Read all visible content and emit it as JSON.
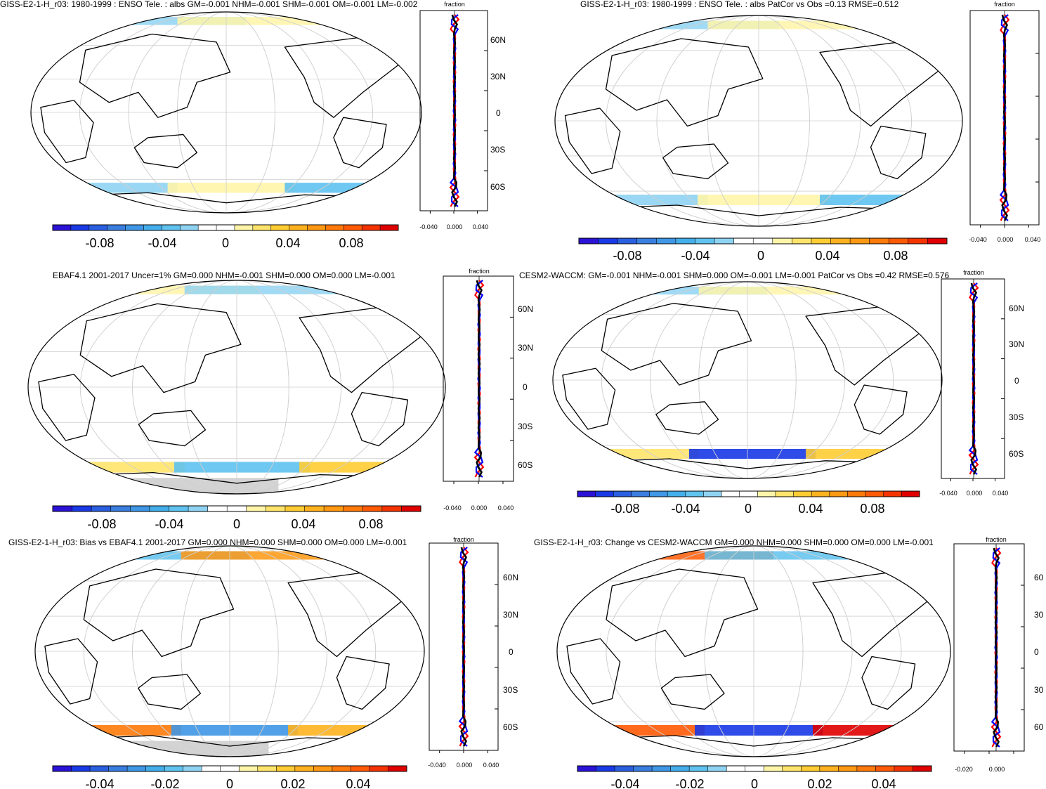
{
  "palette": [
    "#2a12d6",
    "#1a39e6",
    "#2a5fe0",
    "#3a7ee0",
    "#3f97e6",
    "#43aeea",
    "#5fc2ef",
    "#8fd3f3",
    "#ffffff",
    "#ffffff",
    "#fff5a8",
    "#ffe46b",
    "#ffcc33",
    "#ffb21f",
    "#ff9812",
    "#ff7a0a",
    "#ff5a05",
    "#f53300",
    "#e00000"
  ],
  "panels": [
    {
      "title": "GISS-E2-1-H_r03: 1980-1999 : ENSO Tele. : albs GM=-0.001 NHM=-0.001 SHM=-0.001 OM=-0.001 LM=-0.002",
      "colorbar_labels": [
        "-0.08",
        "-0.04",
        "0",
        "0.04",
        "0.08"
      ],
      "profile": {
        "header": "fraction",
        "xticks": [
          "-0.040",
          "0.000",
          "0.040"
        ],
        "lat_labels": [
          "60N",
          "30N",
          "0",
          "30S",
          "60S"
        ]
      },
      "map": {
        "gray_land": false,
        "bands": [
          {
            "pole": "north",
            "color": "#8fd3f3"
          },
          {
            "pole": "north",
            "color": "#fff5a8"
          },
          {
            "pole": "south",
            "color": "#8fd3f3"
          },
          {
            "pole": "south",
            "color": "#fff5a8"
          },
          {
            "pole": "south",
            "color": "#5fc2ef"
          }
        ]
      }
    },
    {
      "title": "GISS-E2-1-H_r03: 1980-1999 : ENSO Tele. : albs PatCor vs Obs =0.13 RMSE=0.512",
      "colorbar_labels": [
        "-0.08",
        "-0.04",
        "0",
        "0.04",
        "0.08"
      ],
      "profile": {
        "header": "fraction",
        "xticks": [
          "-0.040",
          "0.000",
          "0.040"
        ],
        "lat_labels": []
      },
      "map": {
        "gray_land": false,
        "bands": [
          {
            "pole": "north",
            "color": "#8fd3f3"
          },
          {
            "pole": "north",
            "color": "#fff5a8"
          },
          {
            "pole": "south",
            "color": "#8fd3f3"
          },
          {
            "pole": "south",
            "color": "#fff5a8"
          },
          {
            "pole": "south",
            "color": "#5fc2ef"
          }
        ]
      }
    },
    {
      "title": "EBAF4.1 2001-2017 Uncer=1% GM=0.000 NHM=-0.001 SHM=0.000 OM=0.000 LM=-0.001",
      "colorbar_labels": [
        "-0.08",
        "-0.04",
        "0",
        "0.04",
        "0.08"
      ],
      "profile": {
        "header": "fraction",
        "xticks": [
          "-0.040",
          "0.000",
          "0.040"
        ],
        "lat_labels": [
          "60N",
          "30N",
          "0",
          "30S",
          "60S"
        ]
      },
      "map": {
        "gray_land": true,
        "bands": [
          {
            "pole": "north",
            "color": "#fff5a8"
          },
          {
            "pole": "north",
            "color": "#8fd3f3"
          },
          {
            "pole": "south",
            "color": "#ffe46b"
          },
          {
            "pole": "south",
            "color": "#5fc2ef"
          },
          {
            "pole": "south",
            "color": "#ffcc33"
          }
        ]
      }
    },
    {
      "title": "CESM2-WACCM: GM=-0.001 NHM=-0.001 SHM=0.000 OM=-0.001 LM=-0.001 PatCor vs Obs =0.42 RMSE=0.576",
      "colorbar_labels": [
        "-0.08",
        "-0.04",
        "0",
        "0.04",
        "0.08"
      ],
      "profile": {
        "header": "fraction",
        "xticks": [
          "-0.040",
          "0.000",
          "0.040"
        ],
        "lat_labels": [
          "60N",
          "30N",
          "0",
          "30S",
          "60S"
        ]
      },
      "map": {
        "gray_land": false,
        "bands": [
          {
            "pole": "north",
            "color": "#8fd3f3"
          },
          {
            "pole": "north",
            "color": "#fff5a8"
          },
          {
            "pole": "south",
            "color": "#ffe46b"
          },
          {
            "pole": "south",
            "color": "#1a39e6"
          },
          {
            "pole": "south",
            "color": "#ffcc33"
          }
        ]
      }
    },
    {
      "title": "GISS-E2-1-H_r03: Bias vs EBAF4.1 2001-2017 GM=0.000 NHM=0.000 SHM=0.000 OM=0.000 LM=-0.001",
      "colorbar_labels": [
        "-0.04",
        "-0.02",
        "0",
        "0.02",
        "0.04"
      ],
      "profile": {
        "header": "fraction",
        "xticks": [
          "-0.040",
          "0.000",
          "0.040"
        ],
        "lat_labels": [
          "60N",
          "30N",
          "0",
          "30S",
          "60S"
        ]
      },
      "map": {
        "gray_land": true,
        "bands": [
          {
            "pole": "north",
            "color": "#5fc2ef"
          },
          {
            "pole": "north",
            "color": "#ff9812"
          },
          {
            "pole": "south",
            "color": "#ff7a0a"
          },
          {
            "pole": "south",
            "color": "#3f97e6"
          },
          {
            "pole": "south",
            "color": "#ffb21f"
          }
        ]
      }
    },
    {
      "title": "GISS-E2-1-H_r03: Change vs CESM2-WACCM GM=0.000 NHM=0.000 SHM=0.000 OM=0.000 LM=-0.001",
      "colorbar_labels": [
        "-0.04",
        "-0.02",
        "0",
        "0.02",
        "0.04"
      ],
      "profile": {
        "header": "fraction",
        "xticks": [
          "-0.020",
          "0.000"
        ],
        "lat_labels": [
          "60",
          "30",
          "0",
          "30",
          "60"
        ]
      },
      "map": {
        "gray_land": false,
        "bands": [
          {
            "pole": "north",
            "color": "#ff5a05"
          },
          {
            "pole": "north",
            "color": "#5fc2ef"
          },
          {
            "pole": "south",
            "color": "#ff5a05"
          },
          {
            "pole": "south",
            "color": "#1a39e6"
          },
          {
            "pole": "south",
            "color": "#e00000"
          }
        ]
      }
    }
  ],
  "chart_data": [
    {
      "type": "heatmap",
      "title": "GISS-E2-1-H_r03: 1980-1999 : ENSO Tele. : albs GM=-0.001 NHM=-0.001 SHM=-0.001 OM=-0.001 LM=-0.002",
      "colorbar": {
        "ticks": [
          -0.08,
          -0.04,
          0,
          0.04,
          0.08
        ],
        "range": [
          -0.1,
          0.1
        ]
      },
      "profile": {
        "xticks": [
          -0.04,
          0,
          0.04
        ],
        "lat_ticks": [
          "60N",
          "30N",
          "0",
          "30S",
          "60S"
        ],
        "series": [
          {
            "color": "black"
          },
          {
            "color": "red"
          },
          {
            "color": "blue"
          }
        ]
      }
    },
    {
      "type": "heatmap",
      "title": "GISS-E2-1-H_r03: 1980-1999 : ENSO Tele. : albs PatCor vs Obs =0.13 RMSE=0.512",
      "colorbar": {
        "ticks": [
          -0.08,
          -0.04,
          0,
          0.04,
          0.08
        ],
        "range": [
          -0.1,
          0.1
        ]
      },
      "profile": {
        "xticks": [
          -0.04,
          0,
          0.04
        ]
      }
    },
    {
      "type": "heatmap",
      "title": "EBAF4.1 2001-2017 Uncer=1% GM=0.000 NHM=-0.001 SHM=0.000 OM=0.000 LM=-0.001",
      "colorbar": {
        "ticks": [
          -0.08,
          -0.04,
          0,
          0.04,
          0.08
        ],
        "range": [
          -0.1,
          0.1
        ]
      },
      "profile": {
        "xticks": [
          -0.04,
          0,
          0.04
        ],
        "lat_ticks": [
          "60N",
          "30N",
          "0",
          "30S",
          "60S"
        ]
      }
    },
    {
      "type": "heatmap",
      "title": "CESM2-WACCM: GM=-0.001 NHM=-0.001 SHM=0.000 OM=-0.001 LM=-0.001 PatCor vs Obs =0.42 RMSE=0.576",
      "colorbar": {
        "ticks": [
          -0.08,
          -0.04,
          0,
          0.04,
          0.08
        ],
        "range": [
          -0.1,
          0.1
        ]
      },
      "profile": {
        "xticks": [
          -0.04,
          0,
          0.04
        ],
        "lat_ticks": [
          "60N",
          "30N",
          "0",
          "30S",
          "60S"
        ]
      }
    },
    {
      "type": "heatmap",
      "title": "GISS-E2-1-H_r03: Bias vs EBAF4.1 2001-2017 GM=0.000 NHM=0.000 SHM=0.000 OM=0.000 LM=-0.001",
      "colorbar": {
        "ticks": [
          -0.04,
          -0.02,
          0,
          0.02,
          0.04
        ],
        "range": [
          -0.05,
          0.05
        ]
      },
      "profile": {
        "xticks": [
          -0.04,
          0,
          0.04
        ],
        "lat_ticks": [
          "60N",
          "30N",
          "0",
          "30S",
          "60S"
        ]
      }
    },
    {
      "type": "heatmap",
      "title": "GISS-E2-1-H_r03: Change vs CESM2-WACCM GM=0.000 NHM=0.000 SHM=0.000 OM=0.000 LM=-0.001",
      "colorbar": {
        "ticks": [
          -0.04,
          -0.02,
          0,
          0.02,
          0.04
        ],
        "range": [
          -0.05,
          0.05
        ]
      },
      "profile": {
        "xticks": [
          -0.02,
          0
        ],
        "lat_ticks": [
          "60",
          "30",
          "0",
          "30",
          "60"
        ]
      }
    }
  ]
}
